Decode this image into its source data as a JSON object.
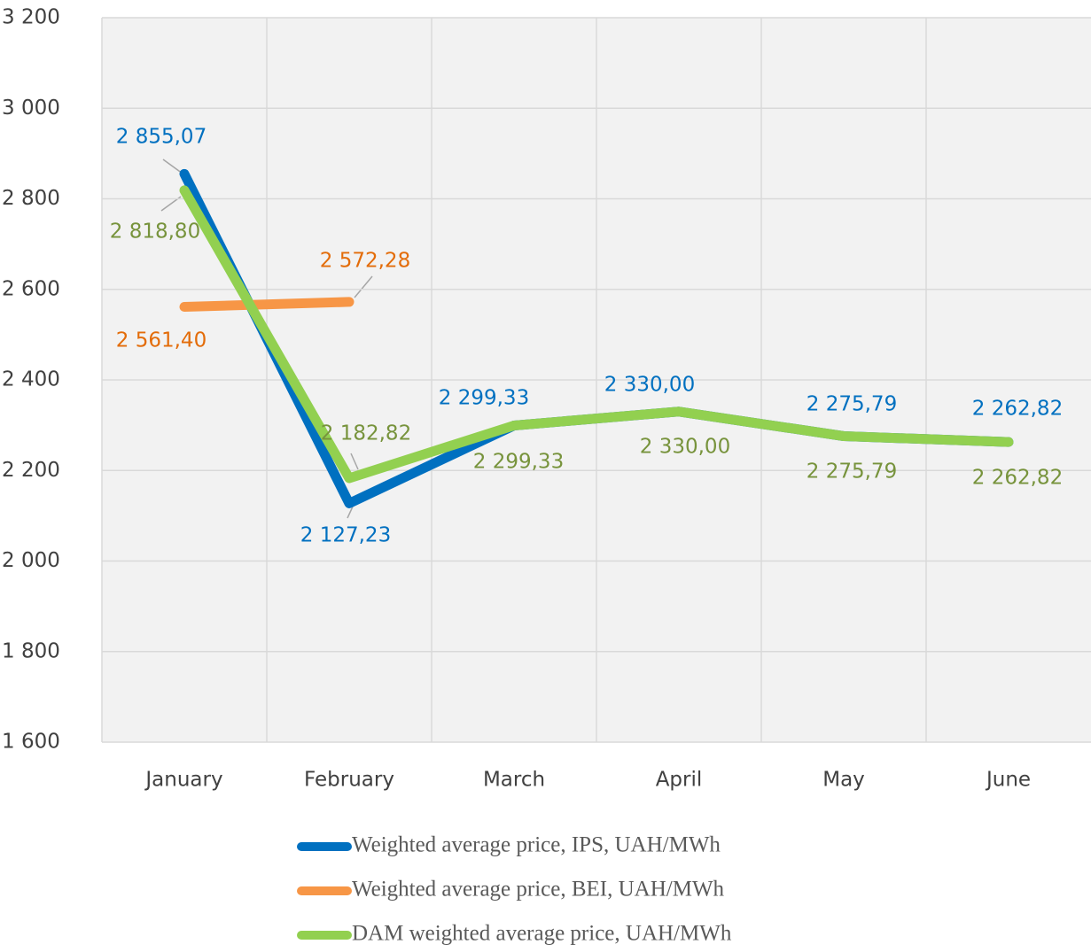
{
  "chart_data": {
    "type": "line",
    "categories": [
      "January",
      "February",
      "March",
      "April",
      "May",
      "June"
    ],
    "ylim": [
      1600,
      3200
    ],
    "yticks": [
      {
        "value": 1600,
        "label": "1 600"
      },
      {
        "value": 1800,
        "label": "1 800"
      },
      {
        "value": 2000,
        "label": "2 000"
      },
      {
        "value": 2200,
        "label": "2 200"
      },
      {
        "value": 2400,
        "label": "2 400"
      },
      {
        "value": 2600,
        "label": "2 600"
      },
      {
        "value": 2800,
        "label": "2 800"
      },
      {
        "value": 3000,
        "label": "3 000"
      },
      {
        "value": 3200,
        "label": "3 200"
      }
    ],
    "grid": true,
    "legend": "bottom",
    "series": [
      {
        "name": "Weighted average price, IPS, UAH/MWh",
        "color": "#0070c0",
        "label_color": "#0070c0",
        "values": [
          2855.07,
          2127.23,
          2299.33,
          2330.0,
          2275.79,
          2262.82
        ],
        "value_labels": [
          "2 855,07",
          "2 127,23",
          "2 299,33",
          "2 330,00",
          "2 275,79",
          "2 262,82"
        ]
      },
      {
        "name": "Weighted average price, BEI, UAH/MWh",
        "color": "#f79646",
        "label_color": "#e36c09",
        "values": [
          2561.4,
          2572.28,
          null,
          null,
          null,
          null
        ],
        "value_labels": [
          "2 561,40",
          "2 572,28",
          null,
          null,
          null,
          null
        ]
      },
      {
        "name": "DAM weighted average price, UAH/MWh",
        "color": "#92d050",
        "label_color": "#77933c",
        "values": [
          2818.8,
          2182.82,
          2299.33,
          2330.0,
          2275.79,
          2262.82
        ],
        "value_labels": [
          "2 818,80",
          "2 182,82",
          "2 299,33",
          "2 330,00",
          "2 275,79",
          "2 262,82"
        ]
      }
    ]
  }
}
